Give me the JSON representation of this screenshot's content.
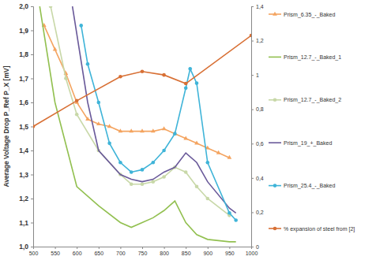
{
  "chart_data": {
    "type": "line",
    "y_label": "Average Voltage Drop P_Ref P_X [mV]",
    "xlim": [
      500,
      1000
    ],
    "xticks": [
      500,
      550,
      600,
      650,
      700,
      750,
      800,
      850,
      900,
      950,
      1000
    ],
    "ylim": [
      1.0,
      2.0
    ],
    "yticks": [
      {
        "value": 1.0,
        "label": "1,0"
      },
      {
        "value": 1.1,
        "label": "1,1"
      },
      {
        "value": 1.2,
        "label": "1,2"
      },
      {
        "value": 1.3,
        "label": "1,3"
      },
      {
        "value": 1.4,
        "label": "1,4"
      },
      {
        "value": 1.5,
        "label": "1,5"
      },
      {
        "value": 1.6,
        "label": "1,6"
      },
      {
        "value": 1.7,
        "label": "1,7"
      },
      {
        "value": 1.8,
        "label": "1,8"
      },
      {
        "value": 1.9,
        "label": "1,9"
      },
      {
        "value": 2.0,
        "label": "2,0"
      }
    ],
    "y2lim": [
      0,
      1.4
    ],
    "y2ticks": [
      0,
      {
        "value": 0.2,
        "label": "0,2"
      },
      {
        "value": 0.4,
        "label": "0,4"
      },
      {
        "value": 0.6,
        "label": "0,6"
      },
      {
        "value": 0.8,
        "label": "0,8"
      },
      1,
      {
        "value": 1.2,
        "label": "1,2"
      },
      {
        "value": 1.4,
        "label": "1,4"
      }
    ],
    "grid": false,
    "legend": "right",
    "series": [
      {
        "name": "Prism_6.35_-_Baked",
        "color": "#f4a460",
        "marker": "triangle",
        "x": [
          525,
          550,
          575,
          600,
          625,
          650,
          675,
          700,
          725,
          750,
          775,
          800,
          825,
          850,
          875,
          900,
          925,
          950
        ],
        "values": [
          1.92,
          1.82,
          1.72,
          1.6,
          1.53,
          1.51,
          1.5,
          1.48,
          1.48,
          1.48,
          1.48,
          1.49,
          1.47,
          1.45,
          1.43,
          1.41,
          1.39,
          1.37
        ]
      },
      {
        "name": "Prism_12.7_-_Baked_1",
        "color": "#92c050",
        "marker": "none",
        "x": [
          515,
          550,
          600,
          650,
          700,
          725,
          750,
          775,
          800,
          825,
          850,
          875,
          900,
          950,
          965
        ],
        "values": [
          2.0,
          1.6,
          1.25,
          1.17,
          1.1,
          1.08,
          1.1,
          1.12,
          1.15,
          1.19,
          1.1,
          1.05,
          1.03,
          1.02,
          1.02
        ]
      },
      {
        "name": "Prism_12.7_-_Baked_2",
        "color": "#c8d8a8",
        "marker": "circle",
        "x": [
          540,
          575,
          600,
          650,
          700,
          725,
          750,
          775,
          800,
          825,
          850,
          875,
          900,
          950
        ],
        "values": [
          2.0,
          1.7,
          1.55,
          1.4,
          1.3,
          1.26,
          1.26,
          1.27,
          1.29,
          1.33,
          1.31,
          1.25,
          1.2,
          1.13
        ]
      },
      {
        "name": "Prism_19_+_Baked",
        "color": "#6a5a9a",
        "marker": "none",
        "x": [
          590,
          625,
          650,
          700,
          725,
          750,
          775,
          800,
          825,
          850,
          875,
          900,
          950,
          965
        ],
        "values": [
          2.0,
          1.6,
          1.4,
          1.3,
          1.28,
          1.27,
          1.28,
          1.31,
          1.33,
          1.39,
          1.35,
          1.27,
          1.16,
          1.14
        ]
      },
      {
        "name": "Prism_25.4_-_Baked",
        "color": "#3fb4d8",
        "marker": "circle",
        "x": [
          610,
          625,
          650,
          675,
          700,
          725,
          750,
          775,
          800,
          825,
          850,
          860,
          875,
          900,
          950,
          965
        ],
        "values": [
          1.92,
          1.76,
          1.6,
          1.43,
          1.35,
          1.31,
          1.32,
          1.35,
          1.4,
          1.47,
          1.66,
          1.74,
          1.68,
          1.35,
          1.14,
          1.11
        ]
      },
      {
        "name": "% expansion of steel from [2]",
        "color": "#d87035",
        "marker": "circle",
        "axis": "y2",
        "x": [
          500,
          600,
          700,
          750,
          800,
          850,
          1000
        ],
        "values": [
          0.7,
          0.85,
          0.99,
          1.02,
          1.0,
          0.95,
          1.23
        ]
      }
    ]
  }
}
